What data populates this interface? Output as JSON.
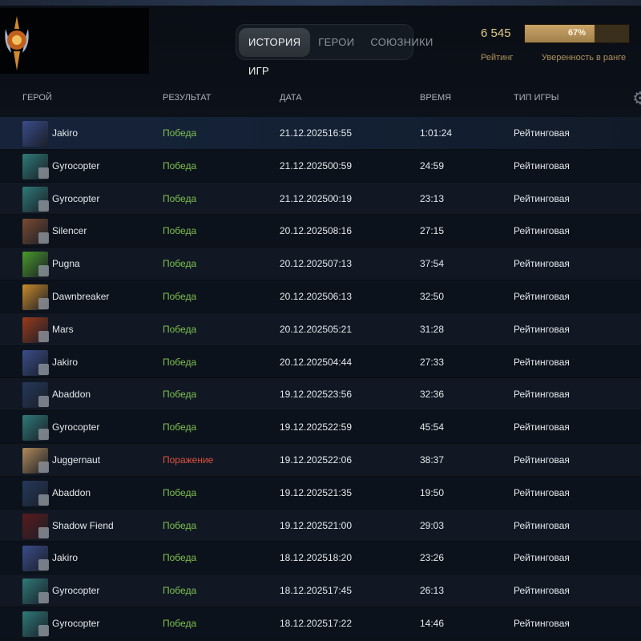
{
  "tabs": [
    {
      "label": "ИСТОРИЯ ИГР",
      "active": true
    },
    {
      "label": "ГЕРОИ"
    },
    {
      "label": "СОЮЗНИКИ"
    }
  ],
  "rating": {
    "value": "6 545",
    "label": "Рейтинг"
  },
  "confidence": {
    "percent": 67,
    "value_label": "67%",
    "label": "Уверенность в ранге"
  },
  "columns": {
    "hero": "ГЕРОЙ",
    "result": "РЕЗУЛЬТАТ",
    "date": "ДАТА",
    "duration": "ВРЕМЯ",
    "type": "ТИП ИГРЫ"
  },
  "colors": {
    "win": "#7ec24f",
    "loss": "#e0503c",
    "gold": "#c9a468"
  },
  "matches": [
    {
      "hero": "Jakiro",
      "result": "Победа",
      "date": "21.12.2025",
      "time": "16:55",
      "duration": "1:01:24",
      "type": "Рейтинговая",
      "color": "#3a4c8a"
    },
    {
      "hero": "Gyrocopter",
      "result": "Победа",
      "date": "21.12.2025",
      "time": "00:59",
      "duration": "24:59",
      "type": "Рейтинговая",
      "color": "#2f7a78"
    },
    {
      "hero": "Gyrocopter",
      "result": "Победа",
      "date": "21.12.2025",
      "time": "00:19",
      "duration": "23:13",
      "type": "Рейтинговая",
      "color": "#2f7a78"
    },
    {
      "hero": "Silencer",
      "result": "Победа",
      "date": "20.12.2025",
      "time": "08:16",
      "duration": "27:15",
      "type": "Рейтинговая",
      "color": "#7a4a30"
    },
    {
      "hero": "Pugna",
      "result": "Победа",
      "date": "20.12.2025",
      "time": "07:13",
      "duration": "37:54",
      "type": "Рейтинговая",
      "color": "#4a9a2a"
    },
    {
      "hero": "Dawnbreaker",
      "result": "Победа",
      "date": "20.12.2025",
      "time": "06:13",
      "duration": "32:50",
      "type": "Рейтинговая",
      "color": "#c98a2a"
    },
    {
      "hero": "Mars",
      "result": "Победа",
      "date": "20.12.2025",
      "time": "05:21",
      "duration": "31:28",
      "type": "Рейтинговая",
      "color": "#9a3a1a"
    },
    {
      "hero": "Jakiro",
      "result": "Победа",
      "date": "20.12.2025",
      "time": "04:44",
      "duration": "27:33",
      "type": "Рейтинговая",
      "color": "#3a4c8a"
    },
    {
      "hero": "Abaddon",
      "result": "Победа",
      "date": "19.12.2025",
      "time": "23:56",
      "duration": "32:36",
      "type": "Рейтинговая",
      "color": "#24385a"
    },
    {
      "hero": "Gyrocopter",
      "result": "Победа",
      "date": "19.12.2025",
      "time": "22:59",
      "duration": "45:54",
      "type": "Рейтинговая",
      "color": "#2f7a78"
    },
    {
      "hero": "Juggernaut",
      "result": "Поражение",
      "date": "19.12.2025",
      "time": "22:06",
      "duration": "38:37",
      "type": "Рейтинговая",
      "color": "#b08a5a",
      "loss": true
    },
    {
      "hero": "Abaddon",
      "result": "Победа",
      "date": "19.12.2025",
      "time": "21:35",
      "duration": "19:50",
      "type": "Рейтинговая",
      "color": "#24385a"
    },
    {
      "hero": "Shadow Fiend",
      "result": "Победа",
      "date": "19.12.2025",
      "time": "21:00",
      "duration": "29:03",
      "type": "Рейтинговая",
      "color": "#5a1a1a"
    },
    {
      "hero": "Jakiro",
      "result": "Победа",
      "date": "18.12.2025",
      "time": "18:20",
      "duration": "23:26",
      "type": "Рейтинговая",
      "color": "#3a4c8a"
    },
    {
      "hero": "Gyrocopter",
      "result": "Победа",
      "date": "18.12.2025",
      "time": "17:45",
      "duration": "26:13",
      "type": "Рейтинговая",
      "color": "#2f7a78"
    },
    {
      "hero": "Gyrocopter",
      "result": "Победа",
      "date": "18.12.2025",
      "time": "17:22",
      "duration": "14:46",
      "type": "Рейтинговая",
      "color": "#2f7a78"
    }
  ]
}
